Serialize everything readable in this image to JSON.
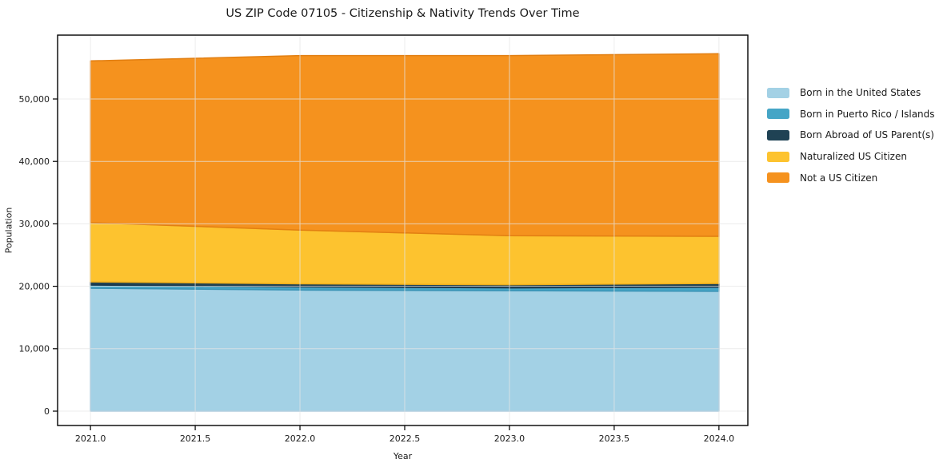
{
  "title": "US ZIP Code 07105 - Citizenship & Nativity Trends Over Time",
  "chart_data": {
    "type": "area",
    "stacked": true,
    "title": "US ZIP Code 07105 - Citizenship & Nativity Trends Over Time",
    "xlabel": "Year",
    "ylabel": "Population",
    "x": [
      2021,
      2022,
      2023,
      2024
    ],
    "series": [
      {
        "name": "Born in the United States",
        "color": "#A3D1E5",
        "edge_color": "#7FB8D8",
        "values": [
          19700,
          19400,
          19300,
          19200
        ]
      },
      {
        "name": "Born in Puerto Rico / Islands",
        "color": "#45A5C6",
        "edge_color": "#3A93B5",
        "values": [
          500,
          500,
          450,
          650
        ]
      },
      {
        "name": "Born Abroad of US Parent(s)",
        "color": "#1F4254",
        "edge_color": "#17344A",
        "values": [
          500,
          500,
          500,
          600
        ]
      },
      {
        "name": "Naturalized US Citizen",
        "color": "#FDC32F",
        "edge_color": "#EFAF1B",
        "values": [
          9500,
          8600,
          7850,
          7550
        ]
      },
      {
        "name": "Not a US Citizen",
        "color": "#F5921E",
        "edge_color": "#E27F12",
        "values": [
          25900,
          27950,
          28850,
          29250
        ]
      }
    ],
    "totals": [
      56100,
      56950,
      56950,
      57250
    ],
    "x_ticks": [
      2021.0,
      2021.5,
      2022.0,
      2022.5,
      2023.0,
      2023.5,
      2024.0
    ],
    "x_tick_labels": [
      "2021.0",
      "2021.5",
      "2022.0",
      "2022.5",
      "2023.0",
      "2023.5",
      "2024.0"
    ],
    "y_ticks": [
      0,
      10000,
      20000,
      30000,
      40000,
      50000
    ],
    "y_tick_labels": [
      "0",
      "10,000",
      "20,000",
      "30,000",
      "40,000",
      "50,000"
    ],
    "xlim": [
      2020.843,
      2024.138
    ],
    "ylim": [
      -2300,
      60230
    ],
    "grid": true,
    "grid_color": "#e6e6e6",
    "frame_color": "#000000",
    "legend_position": "right-outside"
  }
}
